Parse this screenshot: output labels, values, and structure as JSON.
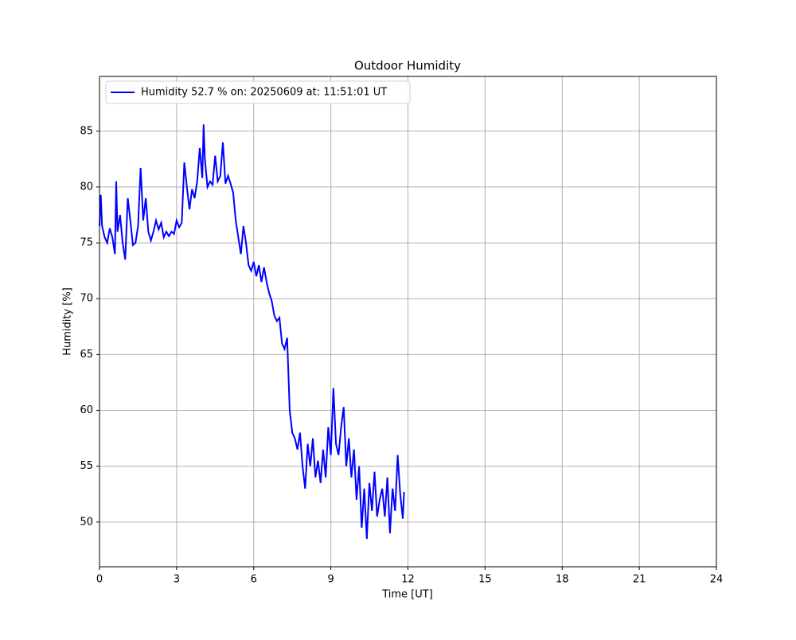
{
  "chart_data": {
    "type": "line",
    "title": "Outdoor Humidity",
    "xlabel": "Time [UT]",
    "ylabel": "Humidity [%]",
    "x": [
      0,
      0.05,
      0.1,
      0.2,
      0.3,
      0.4,
      0.5,
      0.6,
      0.65,
      0.7,
      0.8,
      0.9,
      1.0,
      1.1,
      1.2,
      1.3,
      1.4,
      1.5,
      1.6,
      1.7,
      1.8,
      1.9,
      2.0,
      2.1,
      2.2,
      2.3,
      2.4,
      2.5,
      2.6,
      2.7,
      2.8,
      2.9,
      3.0,
      3.1,
      3.2,
      3.3,
      3.4,
      3.5,
      3.6,
      3.7,
      3.8,
      3.9,
      4.0,
      4.05,
      4.1,
      4.2,
      4.3,
      4.4,
      4.5,
      4.6,
      4.7,
      4.8,
      4.9,
      5.0,
      5.1,
      5.2,
      5.3,
      5.4,
      5.5,
      5.6,
      5.7,
      5.8,
      5.9,
      6.0,
      6.1,
      6.2,
      6.3,
      6.4,
      6.5,
      6.6,
      6.7,
      6.8,
      6.9,
      7.0,
      7.1,
      7.2,
      7.3,
      7.4,
      7.5,
      7.6,
      7.7,
      7.8,
      7.9,
      8.0,
      8.1,
      8.2,
      8.3,
      8.4,
      8.5,
      8.6,
      8.7,
      8.8,
      8.9,
      9.0,
      9.1,
      9.2,
      9.3,
      9.4,
      9.5,
      9.6,
      9.7,
      9.8,
      9.9,
      10.0,
      10.1,
      10.2,
      10.3,
      10.4,
      10.5,
      10.6,
      10.7,
      10.8,
      10.9,
      11.0,
      11.1,
      11.2,
      11.3,
      11.4,
      11.5,
      11.6,
      11.7,
      11.8,
      11.85
    ],
    "series": [
      {
        "name": "Humidity 52.7 % on: 20250609 at: 11:51:01 UT",
        "color": "#0000ff",
        "values": [
          76.5,
          79.3,
          76.5,
          75.5,
          75,
          76.3,
          75.5,
          74,
          80.5,
          76,
          77.5,
          75,
          73.5,
          79,
          77,
          74.8,
          75,
          76.5,
          81.7,
          77,
          79,
          76,
          75.2,
          76,
          77,
          76.2,
          76.8,
          75.5,
          76,
          75.6,
          76,
          75.8,
          77,
          76.4,
          76.8,
          82.2,
          80,
          78,
          79.8,
          79,
          80.5,
          83.5,
          80.8,
          85.6,
          82.5,
          80,
          80.5,
          80.2,
          82.8,
          80.5,
          81,
          84,
          80.3,
          81,
          80.3,
          79.5,
          77,
          75.5,
          74,
          76.5,
          75,
          73,
          72.5,
          73.3,
          72,
          73,
          71.5,
          72.8,
          71.5,
          70.5,
          69.8,
          68.5,
          68,
          68.3,
          66,
          65.5,
          66.5,
          60,
          58,
          57.5,
          56.5,
          58,
          55,
          53,
          57,
          55,
          57.5,
          54,
          55.5,
          53.5,
          56.5,
          54,
          58.5,
          56,
          62,
          57,
          56,
          58.5,
          60.3,
          55,
          57.5,
          54,
          56.5,
          52,
          55,
          49.5,
          53,
          48.5,
          53.5,
          51,
          54.5,
          50.5,
          52,
          53,
          50.5,
          54,
          49,
          53,
          51,
          56,
          52.5,
          50.3,
          52.7
        ]
      }
    ],
    "xlim": [
      0,
      24
    ],
    "xticks": [
      0,
      3,
      6,
      9,
      12,
      15,
      18,
      21,
      24
    ],
    "ylim": [
      46,
      89.9
    ],
    "yticks": [
      50,
      55,
      60,
      65,
      70,
      75,
      80,
      85
    ],
    "grid": true,
    "legend": "upper left"
  }
}
